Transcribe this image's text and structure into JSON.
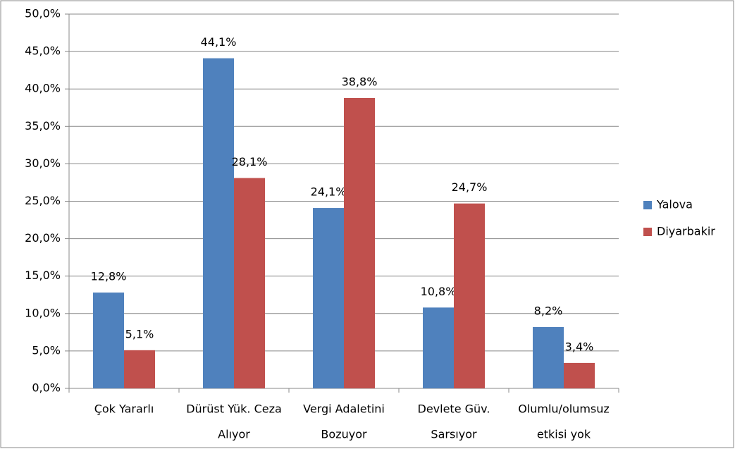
{
  "chart_data": {
    "type": "bar",
    "categories": [
      [
        "Çok Yararlı"
      ],
      [
        "Dürüst Yük. Ceza",
        "Alıyor"
      ],
      [
        "Vergi Adaletini",
        "Bozuyor"
      ],
      [
        "Devlete Güv.",
        "Sarsıyor"
      ],
      [
        "Olumlu/olumsuz",
        "etkisi yok"
      ]
    ],
    "series": [
      {
        "name": "Yalova",
        "color": "#4f81bd",
        "values": [
          12.8,
          44.1,
          24.1,
          10.8,
          8.2
        ],
        "value_labels": [
          "12,8%",
          "44,1%",
          "24,1%",
          "10,8%",
          "8,2%"
        ]
      },
      {
        "name": "Diyarbakir",
        "color": "#c0504d",
        "values": [
          5.1,
          28.1,
          38.8,
          24.7,
          3.4
        ],
        "value_labels": [
          "5,1%",
          "28,1%",
          "38,8%",
          "24,7%",
          "3,4%"
        ]
      }
    ],
    "ylim": [
      0,
      50
    ],
    "yticks": [
      {
        "value": 0,
        "label": "0,0%"
      },
      {
        "value": 5,
        "label": "5,0%"
      },
      {
        "value": 10,
        "label": "10,0%"
      },
      {
        "value": 15,
        "label": "15,0%"
      },
      {
        "value": 20,
        "label": "20,0%"
      },
      {
        "value": 25,
        "label": "25,0%"
      },
      {
        "value": 30,
        "label": "30,0%"
      },
      {
        "value": 35,
        "label": "35,0%"
      },
      {
        "value": 40,
        "label": "40,0%"
      },
      {
        "value": 45,
        "label": "45,0%"
      },
      {
        "value": 50,
        "label": "50,0%"
      }
    ],
    "grid": true,
    "legend": "right"
  }
}
